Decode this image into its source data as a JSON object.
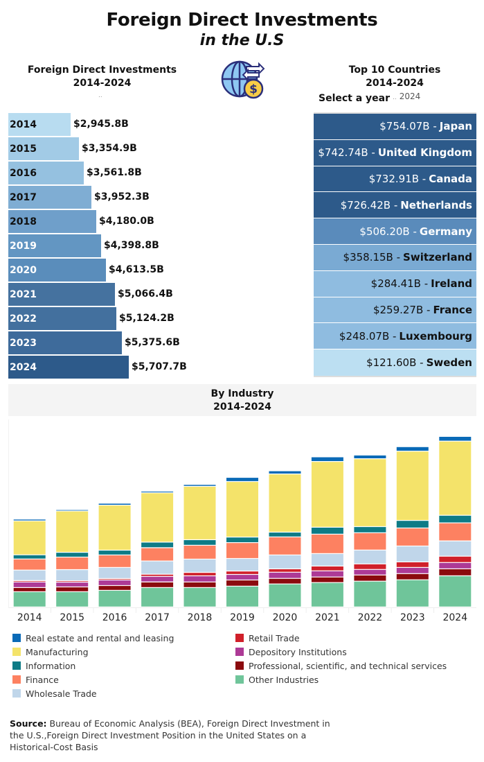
{
  "header": {
    "title": "Foreign Direct Investments",
    "subtitle": "in the U.S"
  },
  "left_panel": {
    "title_line1": "Foreign Direct Investments",
    "title_line2": "2014-2024",
    "dots": ".."
  },
  "right_panel": {
    "title_line1": "Top 10 Countries",
    "title_line2": "2014-2024",
    "select_label": "Select a year",
    "select_sep": "..",
    "selected_year": "2024"
  },
  "industry_panel": {
    "title_line1": "By Industry",
    "title_line2": "2014-2024"
  },
  "source": {
    "label": "Source:",
    "text": " Bureau of Economic Analysis (BEA), Foreign Direct Investment in the U.S.,Foreign Direct Investment Position in the United States on a Historical-Cost Basis"
  },
  "chart_data": [
    {
      "type": "bar",
      "orientation": "horizontal",
      "title": "Foreign Direct Investments 2014-2024",
      "categories": [
        "2014",
        "2015",
        "2016",
        "2017",
        "2018",
        "2019",
        "2020",
        "2021",
        "2022",
        "2023",
        "2024"
      ],
      "values": [
        2945.8,
        3354.9,
        3561.8,
        3952.3,
        4180.0,
        4398.8,
        4613.5,
        5066.4,
        5124.2,
        5375.6,
        5707.7
      ],
      "labels": [
        "$2,945.8B",
        "$3,354.9B",
        "$3,561.8B",
        "$3,952.3B",
        "$4,180.0B",
        "$4,398.8B",
        "$4,613.5B",
        "$5,066.4B",
        "$5,124.2B",
        "$5,375.6B",
        "$5,707.7B"
      ],
      "colors": [
        "#b8dcf0",
        "#a2cbe6",
        "#95c1e0",
        "#7fadd3",
        "#6f9fca",
        "#6396c2",
        "#5a8dbb",
        "#45729f",
        "#43709e",
        "#3e6b9b",
        "#2d5a8a"
      ],
      "unit": "billion USD"
    },
    {
      "type": "table",
      "title": "Top 10 Countries 2014-2024",
      "year": "2024",
      "rows": [
        {
          "country": "Japan",
          "amount": "$754.07B",
          "value": 754.07,
          "color": "#2d5a8a",
          "text": "#ffffff"
        },
        {
          "country": "United Kingdom",
          "amount": "$742.74B",
          "value": 742.74,
          "color": "#2d5a8a",
          "text": "#ffffff"
        },
        {
          "country": "Canada",
          "amount": "$732.91B",
          "value": 732.91,
          "color": "#2d5a8a",
          "text": "#ffffff"
        },
        {
          "country": "Netherlands",
          "amount": "$726.42B",
          "value": 726.42,
          "color": "#2d5a8a",
          "text": "#ffffff"
        },
        {
          "country": "Germany",
          "amount": "$506.20B",
          "value": 506.2,
          "color": "#5a8bbb",
          "text": "#ffffff"
        },
        {
          "country": "Switzerland",
          "amount": "$358.15B",
          "value": 358.15,
          "color": "#7aaad3",
          "text": "#111111"
        },
        {
          "country": "Ireland",
          "amount": "$284.41B",
          "value": 284.41,
          "color": "#8fbce0",
          "text": "#111111"
        },
        {
          "country": "France",
          "amount": "$259.27B",
          "value": 259.27,
          "color": "#8fbce0",
          "text": "#111111"
        },
        {
          "country": "Luxembourg",
          "amount": "$248.07B",
          "value": 248.07,
          "color": "#8fbce0",
          "text": "#111111"
        },
        {
          "country": "Sweden",
          "amount": "$121.60B",
          "value": 121.6,
          "color": "#bcdff2",
          "text": "#111111"
        }
      ]
    },
    {
      "type": "bar",
      "stacked": true,
      "title": "By Industry 2014-2024",
      "xlabel": "",
      "ylabel": "",
      "categories": [
        "2014",
        "2015",
        "2016",
        "2017",
        "2018",
        "2019",
        "2020",
        "2021",
        "2022",
        "2023",
        "2024"
      ],
      "ylim": [
        0,
        6000
      ],
      "grid": false,
      "legend_position": "bottom",
      "series": [
        {
          "name": "Other Industries",
          "color": "#6fc59a",
          "values": [
            495,
            495,
            540,
            630,
            630,
            675,
            745,
            790,
            835,
            880,
            1010
          ]
        },
        {
          "name": "Professional, scientific, and technical services",
          "color": "#8b0a0e",
          "values": [
            135,
            155,
            155,
            180,
            180,
            200,
            180,
            180,
            200,
            200,
            225
          ]
        },
        {
          "name": "Depository Institutions",
          "color": "#ad3a96",
          "values": [
            180,
            155,
            180,
            180,
            200,
            180,
            200,
            200,
            180,
            200,
            205
          ]
        },
        {
          "name": "Retail Trade",
          "color": "#d0202a",
          "values": [
            45,
            45,
            45,
            70,
            110,
            110,
            110,
            155,
            180,
            180,
            205
          ]
        },
        {
          "name": "Wholesale Trade",
          "color": "#c0d6ea",
          "values": [
            340,
            360,
            360,
            430,
            430,
            405,
            450,
            405,
            450,
            515,
            495
          ]
        },
        {
          "name": "Finance",
          "color": "#fd8161",
          "values": [
            360,
            405,
            405,
            430,
            450,
            515,
            585,
            630,
            560,
            585,
            585
          ]
        },
        {
          "name": "Information",
          "color": "#0d7b86",
          "values": [
            135,
            155,
            155,
            180,
            180,
            180,
            155,
            225,
            200,
            245,
            245
          ]
        },
        {
          "name": "Manufacturing",
          "color": "#f4e36a",
          "values": [
            1100,
            1340,
            1460,
            1600,
            1730,
            1800,
            1885,
            2130,
            2200,
            2245,
            2405
          ]
        },
        {
          "name": "Real estate and rental and leasing",
          "color": "#0a6ab7",
          "values": [
            56,
            45,
            62,
            52,
            60,
            134,
            104,
            151,
            119,
            146,
            153
          ]
        }
      ],
      "legend_order": [
        [
          "Real estate and rental and leasing",
          "Manufacturing",
          "Information",
          "Finance",
          "Wholesale Trade"
        ],
        [
          "Retail Trade",
          "Depository Institutions",
          "Professional, scientific, and technical services",
          "Other Industries"
        ]
      ]
    }
  ]
}
